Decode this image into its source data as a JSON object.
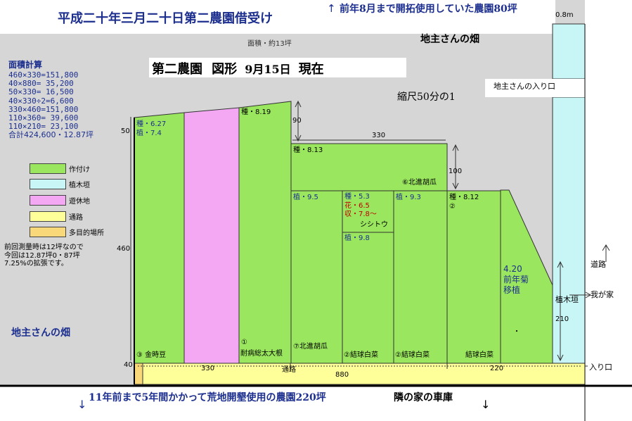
{
  "colors": {
    "background": "#d6d6d6",
    "planted": "#9ae65e",
    "hedge": "#c8f6f6",
    "fallow": "#f4a8f4",
    "path": "#ffff9a",
    "multipurpose": "#f8d878",
    "main_title": "#1c2f8f",
    "accent_red": "#c00000"
  },
  "header": {
    "title": "平成二十年三月二十日第二農園借受け",
    "top_right_note": "前年8月まで開拓使用していた農園80坪",
    "top_right_arrow": "↑",
    "width_top_right": "0.8m",
    "landowner_field_top": "地主さんの畑",
    "area_note": "面積・約13坪"
  },
  "plan_title": {
    "name": "第二農園",
    "shape": "図形",
    "date": "9月15日",
    "status": "現在",
    "scale": "縮尺50分の1"
  },
  "area_calc": {
    "heading": "面積計算",
    "lines": [
      "460×330=151,800",
      "40×880=  35,200",
      "50×330=  16,500",
      "40×330÷2=6,600",
      "330×460=151,800",
      "110×360= 39,600",
      "110×210= 23,100",
      "合計424,600・12.87坪"
    ]
  },
  "legend": [
    {
      "label": "作付け",
      "color": "#9ae65e"
    },
    {
      "label": "植木垣",
      "color": "#c8f6f6"
    },
    {
      "label": "遊休地",
      "color": "#f4a8f4"
    },
    {
      "label": "通路",
      "color": "#ffff9a"
    },
    {
      "label": "多目的場所",
      "color": "#f8d878"
    }
  ],
  "note": {
    "lines": [
      "前回測量時は12坪なので",
      "今回は12.87坪0・87坪",
      "7.25%の拡張です。"
    ]
  },
  "dimensions": {
    "d50": "50",
    "d460": "460",
    "d90": "90",
    "d330_top": "330",
    "d100": "100",
    "d210": "210",
    "d40": "40",
    "d330_bottom": "330",
    "d880": "880",
    "d220": "220"
  },
  "plots": {
    "p1_sow": "種・6.27",
    "p1_plant": "植・7.4",
    "p1_crop": "③ 金時豆",
    "p3_sow": "種・8.19",
    "p3_num": "①",
    "p3_crop": "耐病総太大根",
    "p4_sow": "種・8.13",
    "p4_crop_top": "⑥北進胡瓜",
    "p5_plant": "植・9.5",
    "p5_crop": "⑦北進胡瓜",
    "p6_sow": "種・5.3",
    "p6_flower": "花・6.5",
    "p6_harvest": "収・7.8～",
    "p6_variety": "シシトウ",
    "p6_plant2": "植・9.8",
    "p6_crop": "②結球白菜",
    "p7_plant": "植・9.3",
    "p7_crop": "②結球白菜",
    "p8_sow": "種・8.12",
    "p8_num": "②",
    "p8_crop": "結球白菜",
    "p9_line1": "4.20",
    "p9_line2": "前年菊",
    "p9_line3": "移植",
    "p9_dot": "・"
  },
  "labels": {
    "hedge_right": "植木垣",
    "landowner_entrance": "地主さんの入り口",
    "road": "道路",
    "to_my_house": "我が家",
    "path_label": "通路",
    "entrance": "入り口",
    "landowner_field_left": "地主さんの畑",
    "bottom_note": "11年前まで5年間かかって荒地開墾使用の農園220坪",
    "neighbor_garage": "隣の家の車庫",
    "arrow_down": "↓"
  }
}
